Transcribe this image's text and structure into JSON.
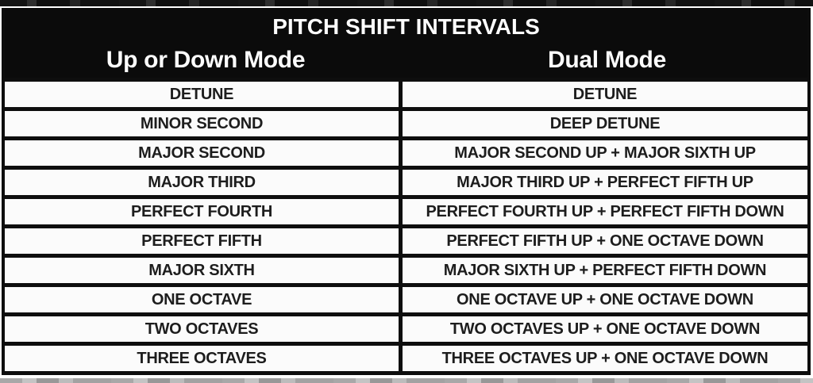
{
  "chart_data": {
    "type": "table",
    "title": "PITCH SHIFT INTERVALS",
    "columns": [
      "Up or Down Mode",
      "Dual Mode"
    ],
    "rows": [
      [
        "DETUNE",
        "DETUNE"
      ],
      [
        "MINOR SECOND",
        "DEEP DETUNE"
      ],
      [
        "MAJOR SECOND",
        "MAJOR SECOND UP + MAJOR SIXTH UP"
      ],
      [
        "MAJOR THIRD",
        "MAJOR THIRD UP + PERFECT FIFTH UP"
      ],
      [
        "PERFECT FOURTH",
        "PERFECT FOURTH UP + PERFECT FIFTH DOWN"
      ],
      [
        "PERFECT FIFTH",
        "PERFECT FIFTH UP + ONE OCTAVE DOWN"
      ],
      [
        "MAJOR SIXTH",
        "MAJOR SIXTH UP + PERFECT FIFTH DOWN"
      ],
      [
        "ONE OCTAVE",
        "ONE OCTAVE UP + ONE OCTAVE DOWN"
      ],
      [
        "TWO OCTAVES",
        "TWO OCTAVES UP + ONE OCTAVE DOWN"
      ],
      [
        "THREE OCTAVES",
        "THREE OCTAVES UP + ONE OCTAVE DOWN"
      ]
    ],
    "layout_hints": {
      "header_style": "white bold text on black band",
      "grid": "thick black rules between all rows and between the two columns"
    },
    "colors": {
      "header_bg": "#0b0b0b",
      "header_text": "#fdfdfd",
      "border": "#0e0e0e",
      "row_bg": "#fbfbfb",
      "cell_text": "#1d1d1d"
    }
  }
}
